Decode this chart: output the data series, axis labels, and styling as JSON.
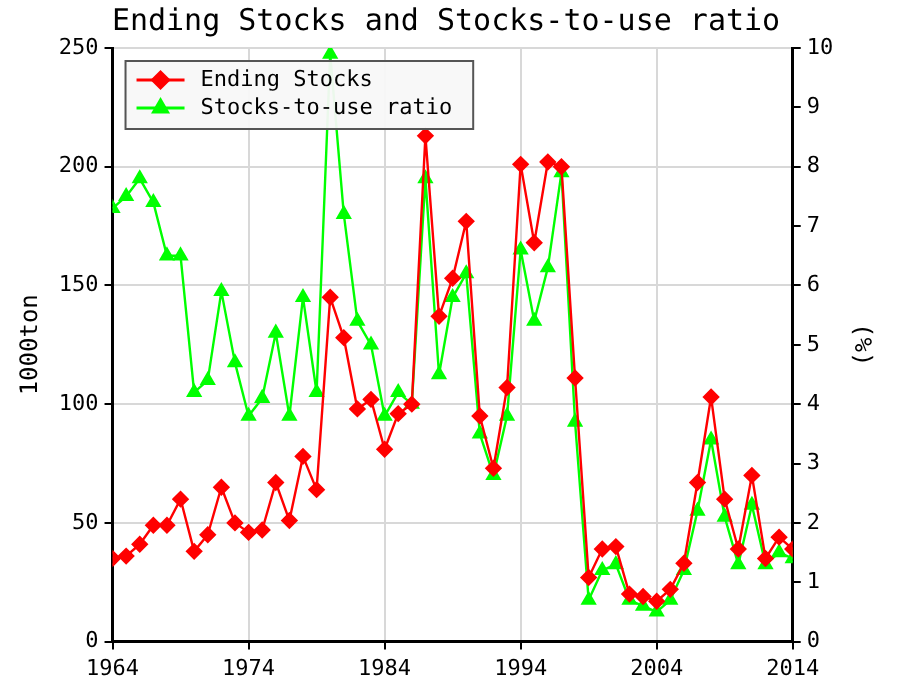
{
  "chart_data": {
    "type": "line",
    "title": "Ending Stocks and Stocks-to-use ratio",
    "ylabel": "1000ton",
    "y2label": "(%)",
    "x": [
      1964,
      1965,
      1966,
      1967,
      1968,
      1969,
      1970,
      1971,
      1972,
      1973,
      1974,
      1975,
      1976,
      1977,
      1978,
      1979,
      1980,
      1981,
      1982,
      1983,
      1984,
      1985,
      1986,
      1987,
      1988,
      1989,
      1990,
      1991,
      1992,
      1993,
      1994,
      1995,
      1996,
      1997,
      1998,
      1999,
      2000,
      2001,
      2002,
      2003,
      2004,
      2005,
      2006,
      2007,
      2008,
      2009,
      2010,
      2011,
      2012,
      2013,
      2014
    ],
    "series": [
      {
        "name": "Ending Stocks",
        "color": "#ff0000",
        "marker": "diamond",
        "values": [
          35,
          36,
          41,
          49,
          49,
          60,
          38,
          45,
          65,
          50,
          46,
          47,
          67,
          51,
          78,
          64,
          145,
          128,
          98,
          102,
          81,
          96,
          100,
          213,
          137,
          153,
          177,
          95,
          73,
          107,
          201,
          168,
          202,
          200,
          111,
          27,
          39,
          40,
          20,
          19,
          17,
          22,
          33,
          67,
          103,
          60,
          39,
          70,
          35,
          44,
          39
        ]
      },
      {
        "name": "Stocks-to-use ratio",
        "color": "#00ff00",
        "marker": "triangle",
        "axis": "y2",
        "values": [
          7.3,
          7.5,
          7.8,
          7.4,
          6.5,
          6.5,
          4.2,
          4.4,
          5.9,
          4.7,
          3.8,
          4.1,
          5.2,
          3.8,
          5.8,
          4.2,
          9.9,
          7.2,
          5.4,
          5.0,
          3.8,
          4.2,
          4.0,
          7.8,
          4.5,
          5.8,
          6.2,
          3.5,
          2.8,
          3.8,
          6.6,
          5.4,
          6.3,
          7.9,
          3.7,
          0.7,
          1.2,
          1.3,
          0.7,
          0.6,
          0.5,
          0.7,
          1.2,
          2.2,
          3.4,
          2.1,
          1.3,
          2.3,
          1.3,
          1.5,
          1.4
        ]
      }
    ],
    "xlim": [
      1964,
      2014
    ],
    "xticks": [
      1964,
      1974,
      1984,
      1994,
      2004,
      2014
    ],
    "ylim": [
      0,
      250
    ],
    "yticks": [
      0,
      50,
      100,
      150,
      200,
      250
    ],
    "y2lim": [
      0,
      10
    ],
    "y2ticks": [
      0,
      1,
      2,
      3,
      4,
      5,
      6,
      7,
      8,
      9,
      10
    ],
    "grid": true,
    "legend": "top left",
    "line_style": "solid"
  }
}
